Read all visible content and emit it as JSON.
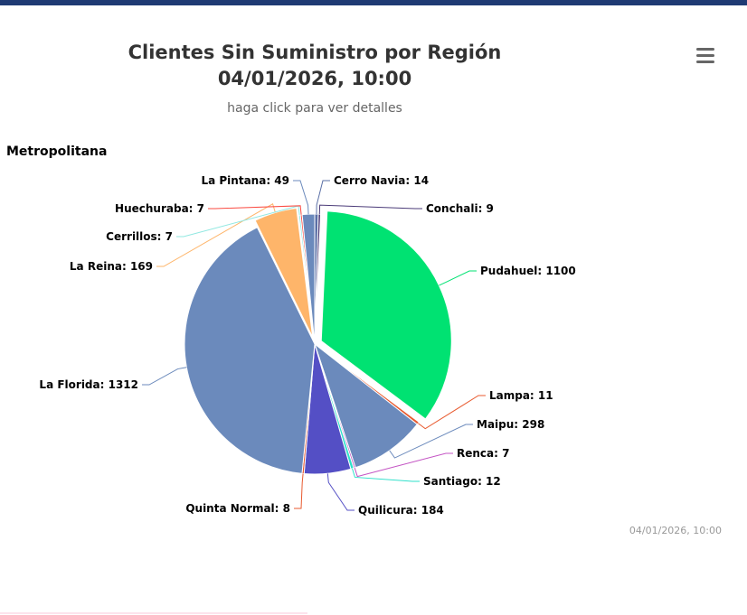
{
  "header": {
    "title_line1": "Clientes Sin Suministro por Región",
    "title_line2": "04/01/2026, 10:00",
    "subtitle": "haga click para ver detalles"
  },
  "menu": {
    "icon": "hamburger-menu-icon"
  },
  "chart_data": {
    "type": "pie",
    "title": "Clientes Sin Suministro por Región 04/01/2026, 10:00",
    "subtitle": "haga click para ver detalles",
    "region": "Metropolitana",
    "slices": [
      {
        "name": "Cerro Navia",
        "value": 14,
        "label": "Cerro Navia: 14",
        "color": "#5a6fa6"
      },
      {
        "name": "Conchali",
        "value": 9,
        "label": "Conchali: 9",
        "color": "#4b3b78"
      },
      {
        "name": "Pudahuel",
        "value": 1100,
        "label": "Pudahuel: 1100",
        "color": "#00e272"
      },
      {
        "name": "Lampa",
        "value": 11,
        "label": "Lampa: 11",
        "color": "#e85a2f"
      },
      {
        "name": "Maipu",
        "value": 298,
        "label": "Maipu: 298",
        "color": "#6b8abc"
      },
      {
        "name": "Renca",
        "value": 7,
        "label": "Renca: 7",
        "color": "#c455c4"
      },
      {
        "name": "Santiago",
        "value": 12,
        "label": "Santiago: 12",
        "color": "#2ee0ca"
      },
      {
        "name": "Quilicura",
        "value": 184,
        "label": "Quilicura: 184",
        "color": "#544fc5"
      },
      {
        "name": "Quinta Normal",
        "value": 8,
        "label": "Quinta Normal: 8",
        "color": "#e85a2f"
      },
      {
        "name": "La Florida",
        "value": 1312,
        "label": "La Florida: 1312",
        "color": "#6b8abc"
      },
      {
        "name": "La Reina",
        "value": 169,
        "label": "La Reina: 169",
        "color": "#feb56a"
      },
      {
        "name": "Cerrillos",
        "value": 7,
        "label": "Cerrillos: 7",
        "color": "#91e8e1"
      },
      {
        "name": "Huechuraba",
        "value": 7,
        "label": "Huechuraba: 7",
        "color": "#fa4b42"
      },
      {
        "name": "La Pintana",
        "value": 49,
        "label": "La Pintana: 49",
        "color": "#6b8abc"
      }
    ]
  },
  "credits": "04/01/2026, 10:00"
}
